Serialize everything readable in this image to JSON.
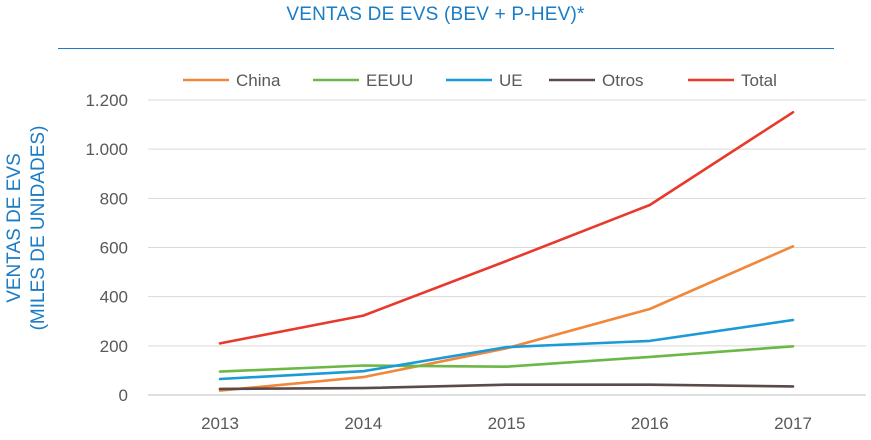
{
  "chart_data": {
    "type": "line",
    "title": "VENTAS DE EVS (BEV + P-HEV)*",
    "ylabel": [
      "VENTAS DE EVS",
      "(MILES DE UNIDADES)"
    ],
    "xlabel": "",
    "categories": [
      "2013",
      "2014",
      "2015",
      "2016",
      "2017"
    ],
    "ylim": [
      0,
      1200
    ],
    "yticks": [
      0,
      200,
      400,
      600,
      800,
      1000,
      1200
    ],
    "ytick_labels": [
      "0",
      "200",
      "400",
      "600",
      "800",
      "1.000",
      "1.200"
    ],
    "grid": "horizontal",
    "legend_position": "top",
    "series": [
      {
        "name": "China",
        "color": "#f0873a",
        "values": [
          18,
          73,
          190,
          350,
          605
        ]
      },
      {
        "name": "EEUU",
        "color": "#6cb846",
        "values": [
          95,
          120,
          115,
          155,
          198
        ]
      },
      {
        "name": "UE",
        "color": "#1a9bd7",
        "values": [
          65,
          97,
          195,
          220,
          305
        ]
      },
      {
        "name": "Otros",
        "color": "#5b4a4a",
        "values": [
          25,
          28,
          42,
          42,
          35
        ]
      },
      {
        "name": "Total",
        "color": "#e8392b",
        "values": [
          210,
          323,
          545,
          773,
          1150
        ]
      }
    ]
  }
}
